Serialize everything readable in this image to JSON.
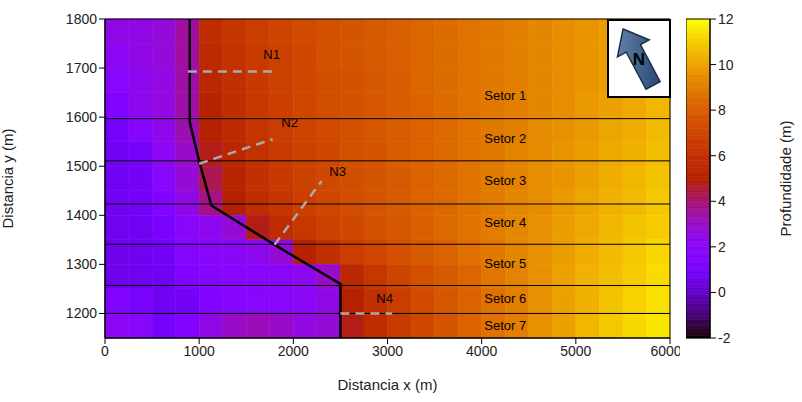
{
  "chart_data": {
    "type": "heatmap",
    "xlabel": "Distancia x (m)",
    "ylabel": "Distancia y (m)",
    "xlim": [
      0,
      6000
    ],
    "xticks": [
      0,
      1000,
      2000,
      3000,
      4000,
      5000,
      6000
    ],
    "ylim": [
      1150,
      1800
    ],
    "yticks": [
      1200,
      1300,
      1400,
      1500,
      1600,
      1700,
      1800
    ],
    "cells": {
      "x": [
        125,
        375,
        625,
        875,
        1125,
        1375,
        1625,
        1875,
        2125,
        2375,
        2625,
        2875,
        3125,
        3375,
        3625,
        3875,
        4125,
        4375,
        4625,
        4875,
        5125,
        5375,
        5625,
        5875
      ],
      "y": [
        1775,
        1725,
        1675,
        1625,
        1575,
        1525,
        1475,
        1425,
        1375,
        1325,
        1275,
        1225,
        1175
      ],
      "z": [
        [
          2.5,
          2.5,
          2.7,
          3.5,
          5.8,
          6.3,
          6.7,
          7.0,
          7.3,
          7.5,
          7.7,
          7.9,
          8.1,
          8.3,
          8.5,
          8.7,
          8.9,
          9.1,
          9.3,
          9.5,
          9.7,
          9.9,
          10.1,
          10.3
        ],
        [
          2.2,
          2.5,
          2.7,
          3.5,
          5.6,
          6.2,
          6.6,
          6.9,
          7.2,
          7.5,
          7.7,
          7.9,
          8.1,
          8.3,
          8.5,
          8.7,
          8.9,
          9.1,
          9.3,
          9.5,
          9.7,
          9.9,
          10.1,
          10.3
        ],
        [
          2.0,
          2.3,
          2.6,
          3.4,
          5.4,
          6.0,
          6.5,
          6.9,
          7.2,
          7.4,
          7.6,
          7.8,
          8.0,
          8.3,
          8.5,
          8.7,
          8.9,
          9.1,
          9.3,
          9.5,
          9.7,
          9.9,
          10.1,
          10.4
        ],
        [
          1.5,
          2.3,
          2.6,
          3.4,
          5.2,
          5.9,
          6.4,
          6.8,
          7.1,
          7.4,
          7.6,
          7.8,
          8.0,
          8.2,
          8.5,
          8.7,
          8.9,
          9.1,
          9.3,
          9.5,
          9.8,
          10.0,
          10.2,
          10.5
        ],
        [
          1.0,
          1.8,
          2.4,
          3.3,
          5.0,
          5.7,
          6.3,
          6.7,
          7.0,
          7.3,
          7.5,
          7.8,
          8.0,
          8.2,
          8.4,
          8.7,
          8.9,
          9.1,
          9.4,
          9.6,
          9.8,
          10.1,
          10.3,
          10.6
        ],
        [
          0.8,
          1.0,
          2.2,
          3.0,
          4.8,
          5.5,
          6.1,
          6.6,
          6.9,
          7.2,
          7.5,
          7.7,
          8.0,
          8.2,
          8.4,
          8.7,
          8.9,
          9.2,
          9.4,
          9.7,
          9.9,
          10.2,
          10.4,
          10.7
        ],
        [
          0.8,
          0.9,
          2.0,
          2.8,
          4.3,
          5.3,
          6.0,
          6.5,
          6.9,
          7.2,
          7.4,
          7.7,
          7.9,
          8.2,
          8.4,
          8.7,
          9.0,
          9.2,
          9.5,
          9.7,
          10.0,
          10.3,
          10.5,
          10.8
        ],
        [
          0.8,
          0.9,
          1.5,
          2.5,
          3.8,
          5.0,
          5.8,
          6.3,
          6.8,
          7.1,
          7.4,
          7.7,
          7.9,
          8.2,
          8.4,
          8.7,
          9.0,
          9.3,
          9.5,
          9.8,
          10.1,
          10.4,
          10.6,
          10.9
        ],
        [
          0.7,
          0.8,
          1.2,
          2.0,
          2.3,
          2.8,
          4.8,
          5.8,
          6.4,
          6.9,
          7.2,
          7.5,
          7.8,
          8.1,
          8.4,
          8.7,
          9.0,
          9.3,
          9.6,
          9.9,
          10.2,
          10.5,
          10.8,
          11.0
        ],
        [
          0.6,
          0.7,
          0.9,
          1.8,
          2.0,
          2.1,
          2.3,
          2.8,
          5.2,
          6.0,
          6.7,
          7.1,
          7.5,
          7.9,
          8.2,
          8.6,
          8.9,
          9.3,
          9.6,
          9.9,
          10.3,
          10.6,
          10.9,
          11.2
        ],
        [
          0.6,
          0.7,
          0.8,
          1.5,
          1.8,
          1.9,
          2.0,
          2.1,
          2.3,
          3.0,
          5.5,
          6.4,
          7.0,
          7.5,
          7.9,
          8.3,
          8.8,
          9.2,
          9.6,
          10.0,
          10.4,
          10.7,
          11.0,
          11.3
        ],
        [
          1.5,
          1.2,
          0.8,
          0.9,
          1.6,
          1.8,
          1.9,
          2.0,
          2.1,
          2.5,
          5.0,
          6.0,
          6.7,
          7.3,
          7.8,
          8.2,
          8.7,
          9.1,
          9.6,
          10.0,
          10.4,
          10.8,
          11.1,
          11.4
        ],
        [
          2.2,
          2.0,
          1.0,
          1.5,
          2.5,
          3.0,
          3.2,
          3.0,
          2.6,
          2.8,
          4.8,
          5.8,
          6.6,
          7.2,
          7.7,
          8.2,
          8.7,
          9.1,
          9.6,
          10.0,
          10.5,
          10.9,
          11.2,
          11.5
        ]
      ]
    },
    "colorbar": {
      "label": "Profundidade (m)",
      "range": [
        -2,
        12
      ],
      "ticks": [
        -2,
        0,
        2,
        4,
        6,
        8,
        10,
        12
      ]
    },
    "lines": [
      {
        "color": "#000000",
        "line_style": "solid",
        "x": [
          900,
          900,
          1000,
          1130,
          1800,
          2500,
          2500
        ],
        "y": [
          1800,
          1590,
          1510,
          1420,
          1340,
          1260,
          1150
        ]
      },
      {
        "color": "#aaaaaa",
        "line_style": "dashed",
        "x": [
          880,
          1800
        ],
        "y": [
          1693,
          1693
        ]
      },
      {
        "color": "#aaaaaa",
        "line_style": "dashed",
        "x": [
          1000,
          1780
        ],
        "y": [
          1505,
          1555
        ]
      },
      {
        "color": "#aaaaaa",
        "line_style": "dashed",
        "x": [
          1800,
          2300
        ],
        "y": [
          1340,
          1470
        ]
      },
      {
        "color": "#aaaaaa",
        "line_style": "dashed",
        "x": [
          2500,
          3050
        ],
        "y": [
          1200,
          1200
        ]
      }
    ],
    "sector_lines": [
      1597,
      1511,
      1423,
      1341,
      1257,
      1200
    ],
    "annotations": [
      {
        "text": "N1",
        "x": 1770,
        "y": 1728
      },
      {
        "text": "N2",
        "x": 1960,
        "y": 1590
      },
      {
        "text": "N3",
        "x": 2470,
        "y": 1490
      },
      {
        "text": "N4",
        "x": 2970,
        "y": 1230
      },
      {
        "text": "Setor 1",
        "x": 4250,
        "y": 1645
      },
      {
        "text": "Setor 2",
        "x": 4250,
        "y": 1557
      },
      {
        "text": "Setor 3",
        "x": 4250,
        "y": 1470
      },
      {
        "text": "Setor 4",
        "x": 4250,
        "y": 1385
      },
      {
        "text": "Setor 5",
        "x": 4250,
        "y": 1302
      },
      {
        "text": "Setor 6",
        "x": 4250,
        "y": 1230
      },
      {
        "text": "Setor 7",
        "x": 4250,
        "y": 1175
      }
    ],
    "north_label": "N"
  }
}
